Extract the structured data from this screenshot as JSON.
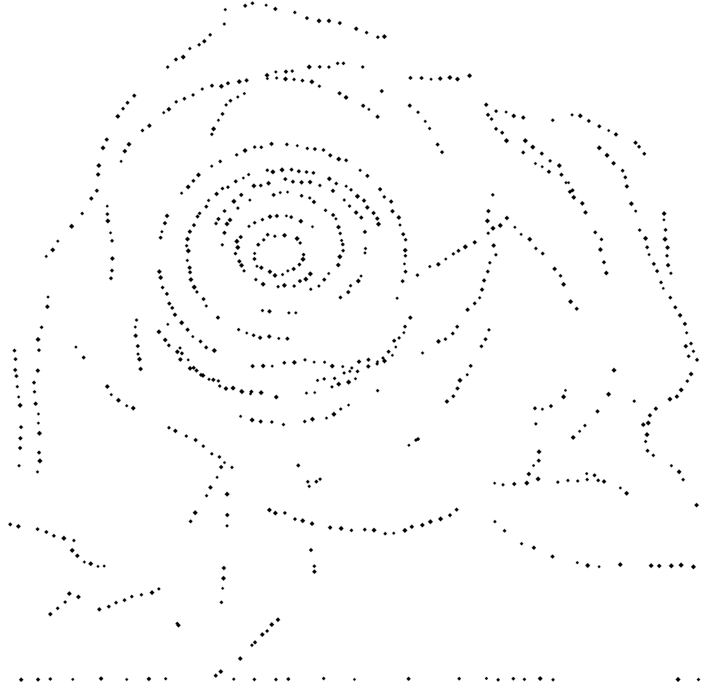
{
  "image": {
    "subject": "rose",
    "style": "dotted line art",
    "background_color": "#ffffff",
    "dot_color": "#000000"
  }
}
